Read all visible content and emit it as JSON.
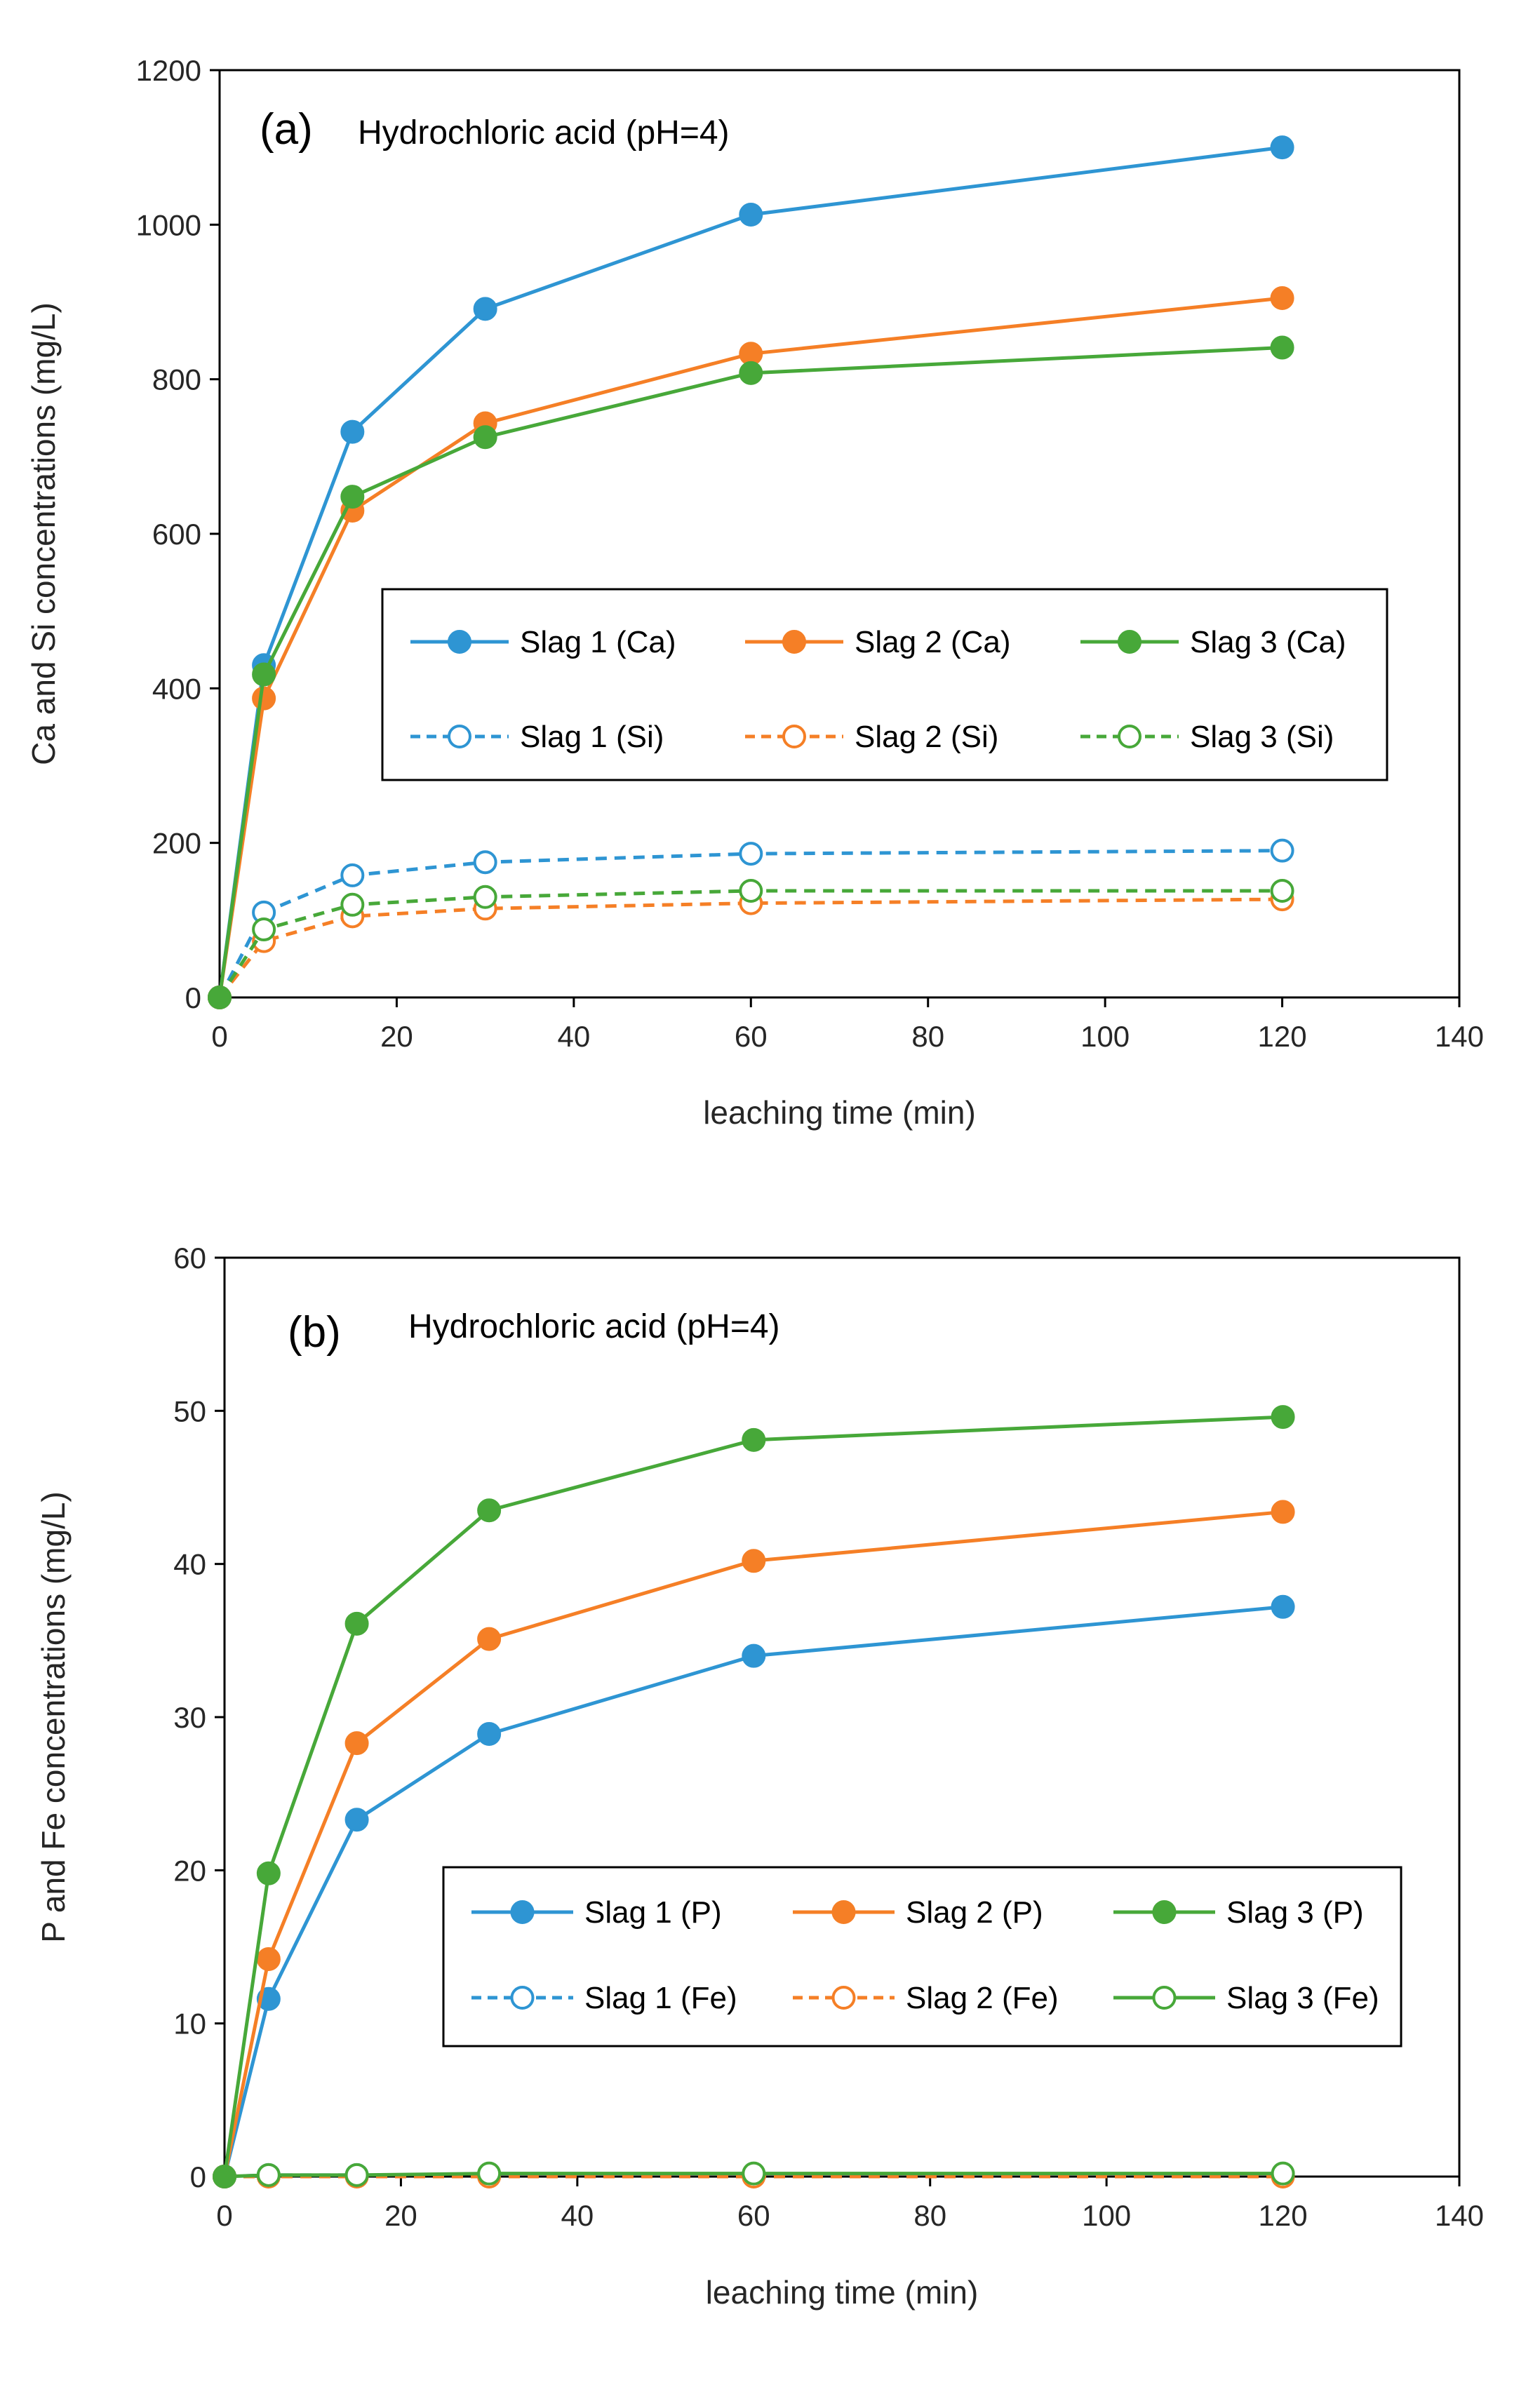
{
  "colors": {
    "slag1": "#2E95D3",
    "slag2": "#F57F26",
    "slag3": "#47A839"
  },
  "chart_data": [
    {
      "type": "line",
      "panel_tag": "(a)",
      "title": "Hydrochloric acid (pH=4)",
      "xlabel": "leaching time (min)",
      "ylabel": "Ca and Si concentrations (mg/L)",
      "xlim": [
        0,
        140
      ],
      "ylim": [
        0,
        1200
      ],
      "xticks": [
        0,
        20,
        40,
        60,
        80,
        100,
        120,
        140
      ],
      "yticks": [
        0,
        200,
        400,
        600,
        800,
        1000,
        1200
      ],
      "legend_position": "center-right",
      "x": [
        0,
        5,
        15,
        30,
        60,
        120
      ],
      "series": [
        {
          "name": "Slag 1 (Ca)",
          "color": "slag1",
          "style": "solid",
          "marker": "filled",
          "values": [
            0,
            430,
            732,
            891,
            1013,
            1100
          ]
        },
        {
          "name": "Slag 2 (Ca)",
          "color": "slag2",
          "style": "solid",
          "marker": "filled",
          "values": [
            0,
            387,
            630,
            743,
            833,
            905
          ]
        },
        {
          "name": "Slag 3 (Ca)",
          "color": "slag3",
          "style": "solid",
          "marker": "filled",
          "values": [
            0,
            418,
            648,
            725,
            808,
            841
          ]
        },
        {
          "name": "Slag 1 (Si)",
          "color": "slag1",
          "style": "dashed",
          "marker": "open",
          "values": [
            0,
            110,
            158,
            175,
            186,
            190
          ]
        },
        {
          "name": "Slag 2 (Si)",
          "color": "slag2",
          "style": "dashed",
          "marker": "open",
          "values": [
            0,
            73,
            105,
            115,
            122,
            127
          ]
        },
        {
          "name": "Slag 3 (Si)",
          "color": "slag3",
          "style": "dashed",
          "marker": "open",
          "values": [
            0,
            88,
            120,
            130,
            138,
            138
          ]
        }
      ]
    },
    {
      "type": "line",
      "panel_tag": "(b)",
      "title": "Hydrochloric acid (pH=4)",
      "xlabel": "leaching time (min)",
      "ylabel": "P and Fe concentrations (mg/L)",
      "xlim": [
        0,
        140
      ],
      "ylim": [
        0,
        60
      ],
      "xticks": [
        0,
        20,
        40,
        60,
        80,
        100,
        120,
        140
      ],
      "yticks": [
        0,
        10,
        20,
        30,
        40,
        50,
        60
      ],
      "legend_position": "bottom-right",
      "x": [
        0,
        5,
        15,
        30,
        60,
        120
      ],
      "series": [
        {
          "name": "Slag 1 (P)",
          "color": "slag1",
          "style": "solid",
          "marker": "filled",
          "values": [
            0,
            11.6,
            23.3,
            28.9,
            34.0,
            37.2
          ]
        },
        {
          "name": "Slag 2 (P)",
          "color": "slag2",
          "style": "solid",
          "marker": "filled",
          "values": [
            0,
            14.2,
            28.3,
            35.1,
            40.2,
            43.4
          ]
        },
        {
          "name": "Slag 3 (P)",
          "color": "slag3",
          "style": "solid",
          "marker": "filled",
          "values": [
            0,
            19.8,
            36.1,
            43.5,
            48.1,
            49.6
          ]
        },
        {
          "name": "Slag 1 (Fe)",
          "color": "slag1",
          "style": "dashed",
          "marker": "open",
          "values": [
            0,
            0.1,
            0.1,
            0.1,
            0.1,
            0.1
          ]
        },
        {
          "name": "Slag 2 (Fe)",
          "color": "slag2",
          "style": "dashed",
          "marker": "open",
          "values": [
            0,
            0,
            0,
            0,
            0,
            0
          ]
        },
        {
          "name": "Slag 3 (Fe)",
          "color": "slag3",
          "style": "solid",
          "marker": "open",
          "values": [
            0,
            0.1,
            0.1,
            0.2,
            0.2,
            0.2
          ]
        }
      ]
    }
  ]
}
